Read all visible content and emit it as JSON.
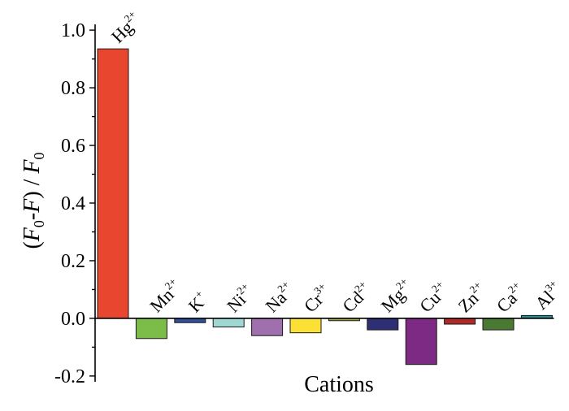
{
  "chart_data": {
    "type": "bar",
    "xlabel": "Cations",
    "ylabel": "(F0-F) / F0",
    "ylabel_parts": {
      "open": "(",
      "f1": "F",
      "sub1": "0",
      "mid": "-",
      "f2": "F",
      "close": ") / ",
      "f3": "F",
      "sub3": "0"
    },
    "ylim": [
      -0.22,
      1.02
    ],
    "yticks": [
      -0.2,
      0.0,
      0.2,
      0.4,
      0.6,
      0.8,
      1.0
    ],
    "ytick_labels": [
      "-0.2",
      "0.0",
      "0.2",
      "0.4",
      "0.6",
      "0.8",
      "1.0"
    ],
    "grid": false,
    "categories": [
      {
        "ion": "Hg",
        "charge": "2+"
      },
      {
        "ion": "Mn",
        "charge": "2+"
      },
      {
        "ion": "K",
        "charge": "+"
      },
      {
        "ion": "Ni",
        "charge": "2+"
      },
      {
        "ion": "Na",
        "charge": "2+"
      },
      {
        "ion": "Cr",
        "charge": "3+"
      },
      {
        "ion": "Cd",
        "charge": "2+"
      },
      {
        "ion": "Mg",
        "charge": "2+"
      },
      {
        "ion": "Cu",
        "charge": "2+"
      },
      {
        "ion": "Zn",
        "charge": "2+"
      },
      {
        "ion": "Ca",
        "charge": "2+"
      },
      {
        "ion": "Al",
        "charge": "3+"
      }
    ],
    "values": [
      0.935,
      -0.07,
      -0.015,
      -0.03,
      -0.06,
      -0.05,
      -0.008,
      -0.04,
      -0.16,
      -0.02,
      -0.04,
      0.01
    ],
    "colors": [
      "#e8462e",
      "#7cbd4a",
      "#2f4f9a",
      "#9fd8d2",
      "#a070ae",
      "#fbe035",
      "#a6a83a",
      "#2e2e74",
      "#7c2a84",
      "#b02a2a",
      "#4a7a32",
      "#1f8f98"
    ]
  }
}
